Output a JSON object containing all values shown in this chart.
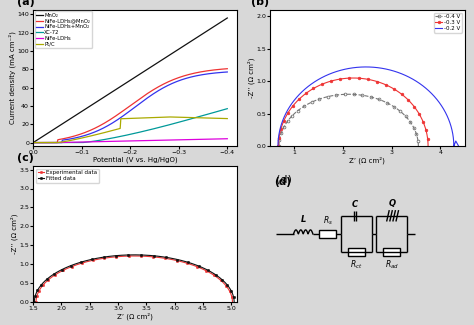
{
  "panel_a": {
    "title": "(a)",
    "xlabel": "Potential (V vs. Hg/HgO)",
    "ylabel": "Current density (mA cm⁻²)",
    "lines": [
      {
        "label": "MnO₂",
        "color": "#111111"
      },
      {
        "label": "NiFe-LDHs@MnO₂",
        "color": "#ee3333"
      },
      {
        "label": "NiFe-LDHs+MnO₂",
        "color": "#3333ee"
      },
      {
        "label": "XC-72",
        "color": "#009999"
      },
      {
        "label": "NiFe-LDHs",
        "color": "#dd00dd"
      },
      {
        "label": "Pt/C",
        "color": "#aaaa00"
      }
    ]
  },
  "panel_b": {
    "title": "(b)",
    "xlabel": "Z’ (Ω cm²)",
    "ylabel": "-Z’’ (Ω cm²)",
    "xlim": [
      0.5,
      4.5
    ],
    "ylim": [
      0,
      2.1
    ],
    "lines": [
      {
        "label": "-0.4 V",
        "color": "#666666"
      },
      {
        "label": "-0.3 V",
        "color": "#ee3333"
      },
      {
        "label": "-0.2 V",
        "color": "#3333ee"
      }
    ]
  },
  "panel_c": {
    "title": "(c)",
    "xlabel": "Z’ (Ω cm²)",
    "ylabel": "-Z’’ (Ω cm²)",
    "xlim": [
      1.5,
      5.1
    ],
    "ylim": [
      0,
      3.6
    ],
    "lines": [
      {
        "label": "Experimental data",
        "color": "#ee3333"
      },
      {
        "label": "Fitted data",
        "color": "#111111"
      }
    ]
  },
  "bg_color": "#d8d8d8"
}
